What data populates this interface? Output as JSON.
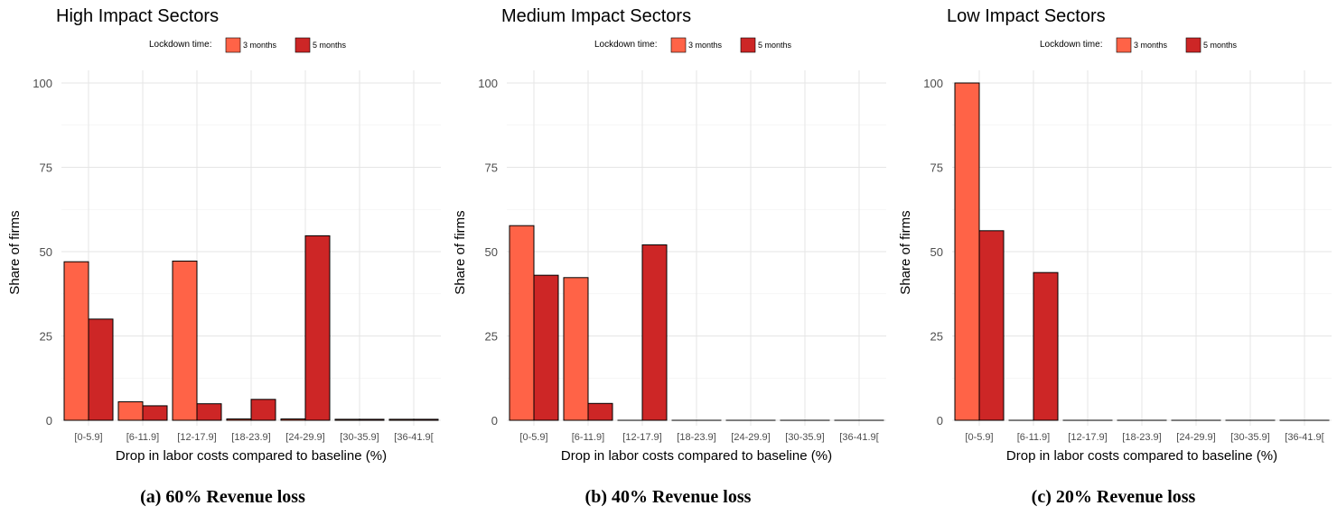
{
  "chart_data": [
    {
      "type": "bar",
      "title": "High Impact Sectors",
      "caption": "(a) 60% Revenue loss",
      "xlabel": "Drop in labor costs compared to baseline (%)",
      "ylabel": "Share of firms",
      "ylim": [
        0,
        100
      ],
      "yticks": [
        "0",
        "25",
        "50",
        "75",
        "100"
      ],
      "legend": {
        "title": "Lockdown time:",
        "placement": "top"
      },
      "categories": [
        "[0-5.9]",
        "[6-11.9]",
        "[12-17.9]",
        "[18-23.9]",
        "[24-29.9]",
        "[30-35.9]",
        "[36-41.9["
      ],
      "series": [
        {
          "name": "3 months",
          "color": "#FF6347",
          "values": [
            47,
            5.5,
            47.2,
            0.4,
            0.4,
            0.3,
            0.3
          ]
        },
        {
          "name": "5 months",
          "color": "#CD2626",
          "values": [
            30,
            4.3,
            4.9,
            6.2,
            54.7,
            0.3,
            0.3
          ]
        }
      ],
      "grid": true
    },
    {
      "type": "bar",
      "title": "Medium Impact Sectors",
      "caption": "(b) 40% Revenue loss",
      "xlabel": "Drop in labor costs compared to baseline (%)",
      "ylabel": "Share of firms",
      "ylim": [
        0,
        100
      ],
      "yticks": [
        "0",
        "25",
        "50",
        "75",
        "100"
      ],
      "legend": {
        "title": "Lockdown time:",
        "placement": "top"
      },
      "categories": [
        "[0-5.9]",
        "[6-11.9]",
        "[12-17.9]",
        "[18-23.9]",
        "[24-29.9]",
        "[30-35.9]",
        "[36-41.9["
      ],
      "series": [
        {
          "name": "3 months",
          "color": "#FF6347",
          "values": [
            57.7,
            42.3,
            0,
            0,
            0,
            0,
            0
          ]
        },
        {
          "name": "5 months",
          "color": "#CD2626",
          "values": [
            43,
            5,
            52,
            0,
            0,
            0,
            0
          ]
        }
      ],
      "grid": true
    },
    {
      "type": "bar",
      "title": "Low Impact Sectors",
      "caption": "(c) 20% Revenue loss",
      "xlabel": "Drop in labor costs compared to baseline (%)",
      "ylabel": "Share of firms",
      "ylim": [
        0,
        100
      ],
      "yticks": [
        "0",
        "25",
        "50",
        "75",
        "100"
      ],
      "legend": {
        "title": "Lockdown time:",
        "placement": "top"
      },
      "categories": [
        "[0-5.9]",
        "[6-11.9]",
        "[12-17.9]",
        "[18-23.9]",
        "[24-29.9]",
        "[30-35.9]",
        "[36-41.9["
      ],
      "series": [
        {
          "name": "3 months",
          "color": "#FF6347",
          "values": [
            100,
            0,
            0,
            0,
            0,
            0,
            0
          ]
        },
        {
          "name": "5 months",
          "color": "#CD2626",
          "values": [
            56.2,
            43.8,
            0,
            0,
            0,
            0,
            0
          ]
        }
      ],
      "grid": true
    }
  ]
}
